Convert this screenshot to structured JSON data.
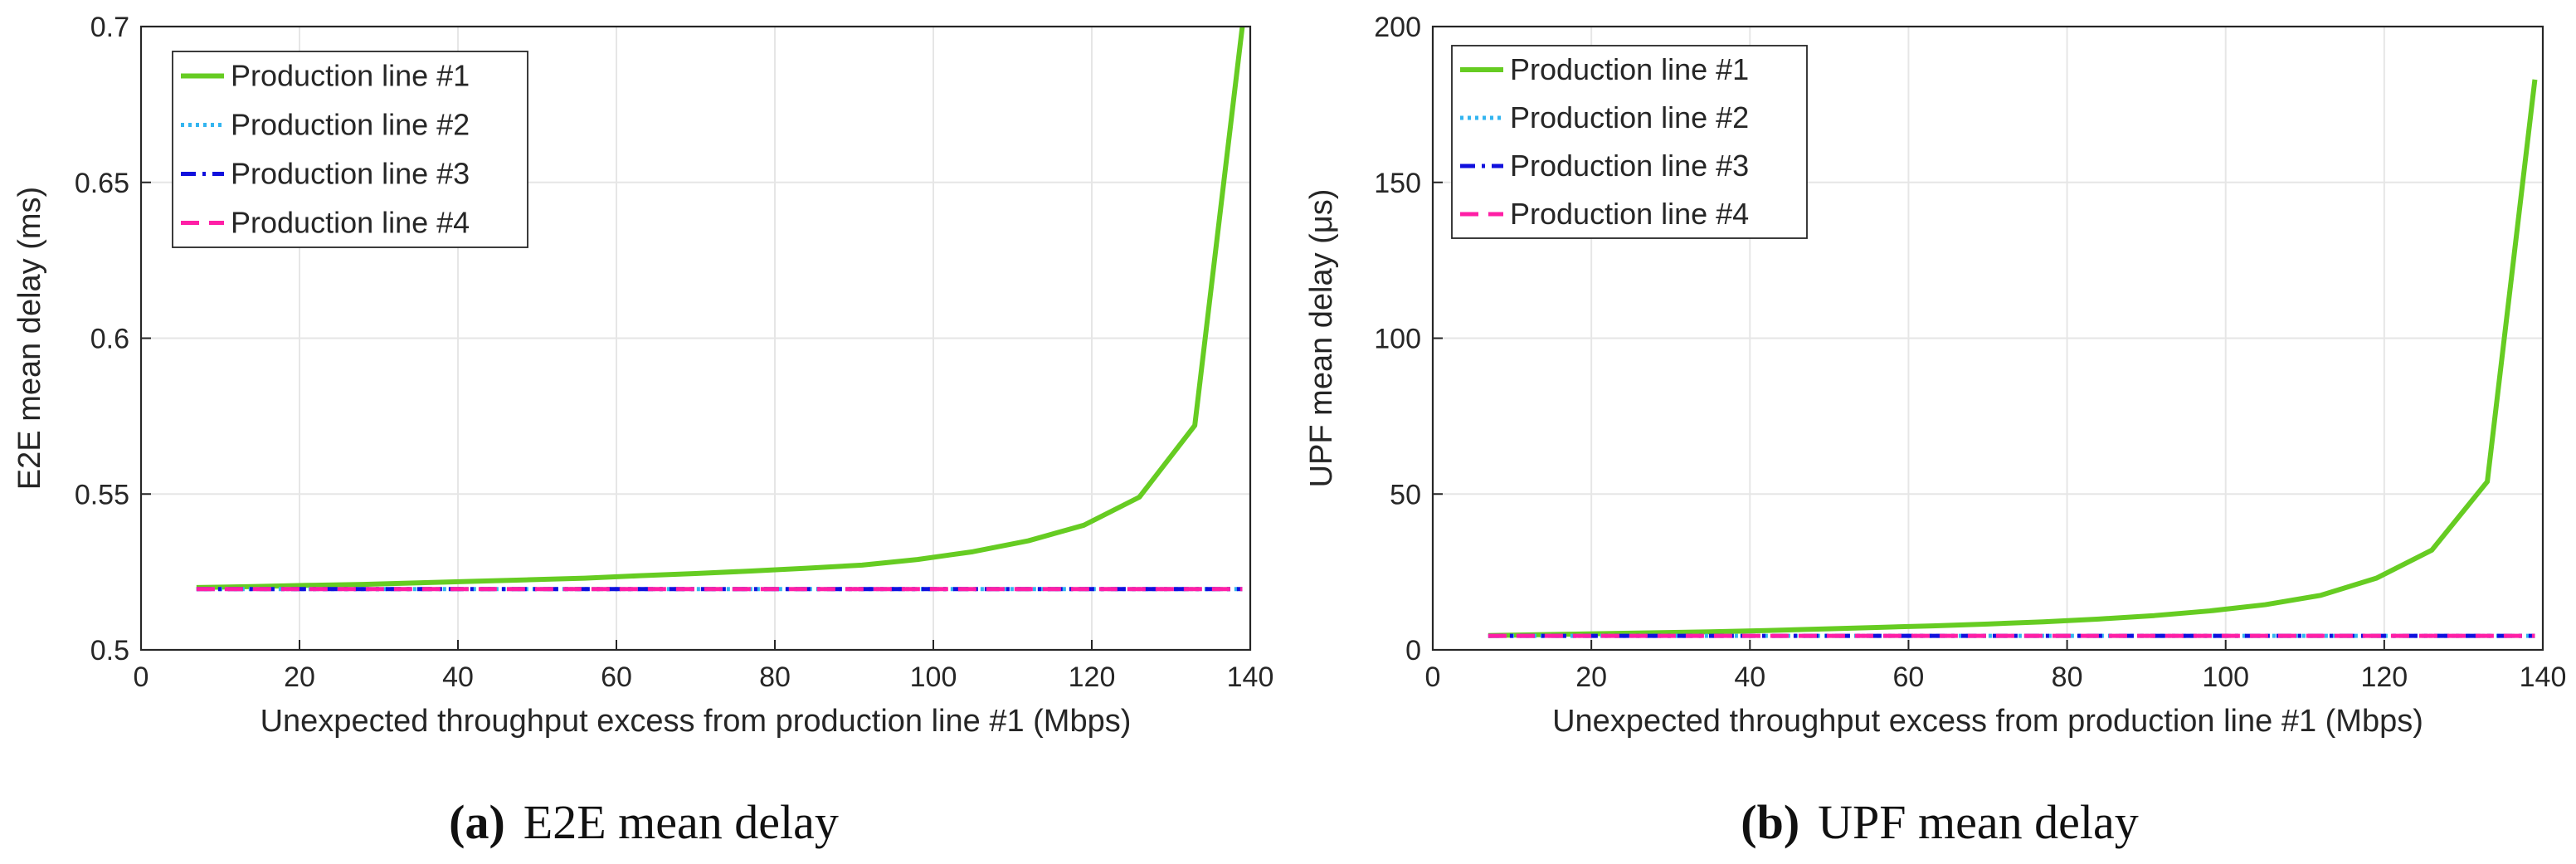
{
  "chart_data": [
    {
      "type": "line",
      "panel_label": "(a)",
      "caption": "E2E mean delay",
      "xlabel": "Unexpected throughput excess from production line #1 (Mbps)",
      "ylabel": "E2E mean delay (ms)",
      "xlim": [
        0,
        140
      ],
      "ylim": [
        0.5,
        0.7
      ],
      "xticks": [
        0,
        20,
        40,
        60,
        80,
        100,
        120,
        140
      ],
      "yticks": [
        0.5,
        0.55,
        0.6,
        0.65,
        0.7
      ],
      "ytick_labels": [
        "0.5",
        "0.55",
        "0.6",
        "0.65",
        "0.7"
      ],
      "grid": true,
      "legend_position": "top-left",
      "x": [
        7,
        14,
        21,
        28,
        35,
        42,
        49,
        56,
        63,
        70,
        77,
        84,
        91,
        98,
        105,
        112,
        119,
        126,
        133,
        139
      ],
      "series": [
        {
          "name": "Production line #1",
          "color": "#66cc22",
          "style": "solid",
          "values": [
            0.52,
            0.5203,
            0.5207,
            0.521,
            0.5215,
            0.522,
            0.5225,
            0.523,
            0.5238,
            0.5245,
            0.5253,
            0.5262,
            0.5272,
            0.529,
            0.5315,
            0.535,
            0.54,
            0.549,
            0.572,
            0.7
          ]
        },
        {
          "name": "Production line #2",
          "color": "#33b5f0",
          "style": "dotted",
          "values": [
            0.5195,
            0.5195,
            0.5195,
            0.5195,
            0.5195,
            0.5195,
            0.5195,
            0.5195,
            0.5195,
            0.5195,
            0.5195,
            0.5195,
            0.5195,
            0.5195,
            0.5195,
            0.5195,
            0.5195,
            0.5195,
            0.5195,
            0.5195
          ]
        },
        {
          "name": "Production line #3",
          "color": "#1010dd",
          "style": "dashdot",
          "values": [
            0.5195,
            0.5195,
            0.5195,
            0.5195,
            0.5195,
            0.5195,
            0.5195,
            0.5195,
            0.5195,
            0.5195,
            0.5195,
            0.5195,
            0.5195,
            0.5195,
            0.5195,
            0.5195,
            0.5195,
            0.5195,
            0.5195,
            0.5195
          ]
        },
        {
          "name": "Production line #4",
          "color": "#ff1fa6",
          "style": "dashed",
          "values": [
            0.5195,
            0.5195,
            0.5195,
            0.5195,
            0.5195,
            0.5195,
            0.5195,
            0.5195,
            0.5195,
            0.5195,
            0.5195,
            0.5195,
            0.5195,
            0.5195,
            0.5195,
            0.5195,
            0.5195,
            0.5195,
            0.5195,
            0.5195
          ]
        }
      ]
    },
    {
      "type": "line",
      "panel_label": "(b)",
      "caption": "UPF mean delay",
      "xlabel": "Unexpected throughput excess from production line #1 (Mbps)",
      "ylabel": "UPF mean delay (μs)",
      "xlim": [
        0,
        140
      ],
      "ylim": [
        0,
        200
      ],
      "xticks": [
        0,
        20,
        40,
        60,
        80,
        100,
        120,
        140
      ],
      "yticks": [
        0,
        50,
        100,
        150,
        200
      ],
      "ytick_labels": [
        "0",
        "50",
        "100",
        "150",
        "200"
      ],
      "grid": true,
      "legend_position": "top-left",
      "x": [
        7,
        14,
        21,
        28,
        35,
        42,
        49,
        56,
        63,
        70,
        77,
        84,
        91,
        98,
        105,
        112,
        119,
        126,
        133,
        139
      ],
      "series": [
        {
          "name": "Production line #1",
          "color": "#66cc22",
          "style": "solid",
          "values": [
            4.6,
            4.9,
            5.2,
            5.5,
            5.8,
            6.2,
            6.7,
            7.2,
            7.7,
            8.3,
            9.0,
            9.9,
            11.0,
            12.5,
            14.5,
            17.5,
            23.0,
            32.0,
            54.0,
            183.0
          ]
        },
        {
          "name": "Production line #2",
          "color": "#33b5f0",
          "style": "dotted",
          "values": [
            4.5,
            4.5,
            4.5,
            4.5,
            4.5,
            4.5,
            4.5,
            4.5,
            4.5,
            4.5,
            4.5,
            4.5,
            4.5,
            4.5,
            4.5,
            4.5,
            4.5,
            4.5,
            4.5,
            4.5
          ]
        },
        {
          "name": "Production line #3",
          "color": "#1010dd",
          "style": "dashdot",
          "values": [
            4.5,
            4.5,
            4.5,
            4.5,
            4.5,
            4.5,
            4.5,
            4.5,
            4.5,
            4.5,
            4.5,
            4.5,
            4.5,
            4.5,
            4.5,
            4.5,
            4.5,
            4.5,
            4.5,
            4.5
          ]
        },
        {
          "name": "Production line #4",
          "color": "#ff1fa6",
          "style": "dashed",
          "values": [
            4.5,
            4.5,
            4.5,
            4.5,
            4.5,
            4.5,
            4.5,
            4.5,
            4.5,
            4.5,
            4.5,
            4.5,
            4.5,
            4.5,
            4.5,
            4.5,
            4.5,
            4.5,
            4.5,
            4.5
          ]
        }
      ]
    }
  ]
}
